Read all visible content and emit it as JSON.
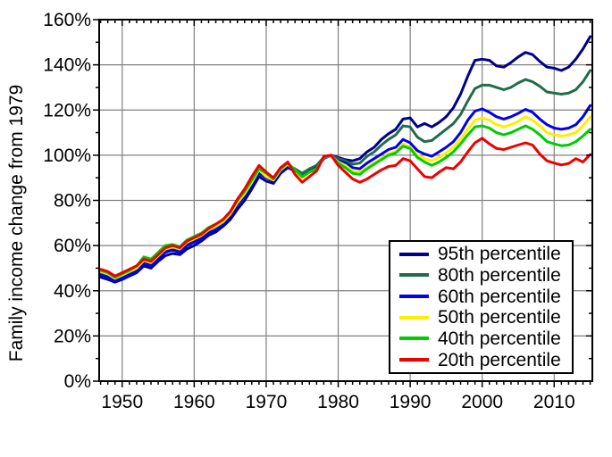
{
  "figure": {
    "background": "#ffffff",
    "frame_color": "#000000",
    "grid_color": "#808080"
  },
  "chart_data": {
    "type": "line",
    "title": "",
    "xlabel": "",
    "ylabel": "Family income change from 1979",
    "x_range": [
      1946.8,
      2015.3
    ],
    "ylim": [
      0,
      160
    ],
    "grid": true,
    "legend_position": "lower right",
    "x_major_ticks": [
      1950,
      1960,
      1970,
      1980,
      1990,
      2000,
      2010
    ],
    "y_major_ticks": [
      0,
      20,
      40,
      60,
      80,
      100,
      120,
      140,
      160
    ],
    "y_minor_step": 10,
    "x_minor_step": 1,
    "y_tick_suffix": "%",
    "years": [
      1947,
      1948,
      1949,
      1950,
      1951,
      1952,
      1953,
      1954,
      1955,
      1956,
      1957,
      1958,
      1959,
      1960,
      1961,
      1962,
      1963,
      1964,
      1965,
      1966,
      1967,
      1968,
      1969,
      1970,
      1971,
      1972,
      1973,
      1974,
      1975,
      1976,
      1977,
      1978,
      1979,
      1980,
      1981,
      1982,
      1983,
      1984,
      1985,
      1986,
      1987,
      1988,
      1989,
      1990,
      1991,
      1992,
      1993,
      1994,
      1995,
      1996,
      1997,
      1998,
      1999,
      2000,
      2001,
      2002,
      2003,
      2004,
      2005,
      2006,
      2007,
      2008,
      2009,
      2010,
      2011,
      2012,
      2013,
      2014,
      2015
    ],
    "series": [
      {
        "name": "95th percentile",
        "color": "#00008B",
        "values": [
          46.0,
          45.0,
          43.8,
          45.0,
          46.5,
          48.0,
          51.0,
          50.0,
          53.0,
          55.5,
          56.5,
          56.0,
          58.5,
          60.0,
          62.0,
          64.5,
          66.0,
          68.5,
          71.5,
          76.0,
          80.0,
          85.0,
          90.5,
          88.5,
          87.5,
          92.0,
          94.5,
          93.0,
          91.5,
          93.5,
          95.5,
          99.0,
          100,
          99.0,
          98.0,
          97.5,
          98.5,
          101.5,
          103.5,
          107.0,
          109.5,
          111.5,
          116.0,
          116.5,
          112.5,
          114.0,
          112.5,
          114.5,
          117.0,
          121.0,
          127.0,
          135.0,
          142.0,
          142.5,
          142.0,
          139.5,
          139.0,
          141.0,
          143.5,
          145.5,
          144.5,
          141.5,
          139.0,
          138.5,
          137.5,
          139.0,
          142.5,
          147.0,
          152.5
        ]
      },
      {
        "name": "80th percentile",
        "color": "#226B4C",
        "values": [
          47.5,
          46.5,
          44.8,
          46.0,
          47.5,
          49.0,
          52.5,
          51.5,
          54.5,
          57.5,
          58.5,
          57.5,
          60.5,
          62.0,
          63.5,
          66.0,
          67.5,
          70.0,
          73.5,
          78.5,
          82.5,
          87.5,
          92.5,
          90.5,
          89.5,
          93.5,
          95.5,
          94.0,
          92.0,
          94.0,
          95.5,
          99.0,
          100,
          98.5,
          97.5,
          96.0,
          96.5,
          99.5,
          101.5,
          104.5,
          107.0,
          109.0,
          113.0,
          112.5,
          108.0,
          106.0,
          106.5,
          109.0,
          111.5,
          114.0,
          118.0,
          124.0,
          129.5,
          131.0,
          131.0,
          130.0,
          129.0,
          130.0,
          132.0,
          133.5,
          132.5,
          130.5,
          128.0,
          127.5,
          127.0,
          127.5,
          129.0,
          132.5,
          137.5
        ]
      },
      {
        "name": "60th percentile",
        "color": "#0000EE",
        "values": [
          47.0,
          46.0,
          44.3,
          45.5,
          47.0,
          48.5,
          52.0,
          51.0,
          54.0,
          57.0,
          58.0,
          57.0,
          60.0,
          61.5,
          63.0,
          65.5,
          67.0,
          69.5,
          73.0,
          78.0,
          82.0,
          87.0,
          92.0,
          90.0,
          88.5,
          92.5,
          95.0,
          92.5,
          90.5,
          92.5,
          94.5,
          98.5,
          100,
          97.5,
          96.5,
          94.5,
          94.0,
          96.5,
          98.5,
          100.5,
          102.5,
          103.5,
          107.0,
          105.5,
          102.0,
          100.5,
          99.5,
          101.5,
          103.5,
          106.0,
          110.0,
          115.5,
          119.5,
          120.5,
          119.0,
          117.0,
          116.0,
          117.0,
          118.5,
          120.3,
          119.0,
          116.0,
          113.5,
          112.0,
          111.5,
          112.0,
          113.5,
          117.0,
          122.0
        ]
      },
      {
        "name": "50th percentile",
        "color": "#FFEE00",
        "values": [
          48.5,
          47.5,
          45.5,
          47.0,
          48.5,
          50.0,
          53.5,
          52.5,
          55.5,
          58.5,
          59.5,
          58.5,
          61.5,
          63.0,
          64.5,
          67.0,
          68.5,
          70.5,
          74.0,
          79.0,
          83.0,
          88.0,
          93.5,
          90.5,
          89.0,
          93.5,
          96.0,
          93.0,
          90.0,
          92.5,
          94.0,
          99.0,
          100,
          97.0,
          95.5,
          93.0,
          92.5,
          94.5,
          96.5,
          98.5,
          100.5,
          101.5,
          105.0,
          103.5,
          100.0,
          98.5,
          97.5,
          99.0,
          101.0,
          103.5,
          107.0,
          111.5,
          115.5,
          116.5,
          115.5,
          113.5,
          112.5,
          113.5,
          115.0,
          117.0,
          115.5,
          113.0,
          110.0,
          109.0,
          108.5,
          109.0,
          110.0,
          113.0,
          117.0
        ]
      },
      {
        "name": "40th percentile",
        "color": "#00CC00",
        "values": [
          49.0,
          48.0,
          46.0,
          47.5,
          49.0,
          51.0,
          55.0,
          54.0,
          57.0,
          60.0,
          60.5,
          59.5,
          62.5,
          64.0,
          65.5,
          68.0,
          69.5,
          71.5,
          75.0,
          80.0,
          84.0,
          89.0,
          94.0,
          92.0,
          89.5,
          94.0,
          96.5,
          93.5,
          90.5,
          92.5,
          94.0,
          99.0,
          100,
          96.5,
          94.5,
          92.0,
          91.5,
          94.0,
          96.0,
          98.0,
          100.0,
          101.0,
          104.0,
          103.0,
          99.0,
          97.0,
          95.5,
          97.0,
          99.0,
          101.5,
          105.0,
          109.0,
          112.5,
          113.0,
          112.0,
          110.0,
          109.0,
          110.0,
          111.5,
          113.0,
          111.5,
          109.0,
          106.0,
          105.0,
          104.2,
          104.5,
          106.0,
          108.5,
          111.5
        ]
      },
      {
        "name": "20th percentile",
        "color": "#EE0000",
        "values": [
          49.5,
          48.5,
          46.5,
          48.0,
          49.5,
          51.0,
          54.0,
          53.0,
          56.0,
          59.0,
          60.0,
          59.0,
          62.0,
          63.5,
          65.0,
          67.5,
          69.5,
          71.5,
          75.0,
          80.5,
          85.0,
          90.5,
          95.5,
          92.5,
          90.0,
          94.5,
          97.0,
          91.5,
          88.0,
          90.5,
          93.0,
          99.5,
          100,
          95.5,
          92.5,
          89.5,
          88.0,
          89.5,
          91.5,
          93.5,
          95.0,
          95.5,
          98.5,
          97.5,
          94.0,
          90.5,
          90.0,
          92.5,
          94.5,
          94.0,
          97.0,
          101.5,
          105.5,
          107.5,
          105.0,
          103.0,
          102.5,
          103.5,
          104.5,
          105.5,
          104.5,
          100.5,
          97.5,
          96.5,
          95.7,
          96.3,
          98.5,
          97.0,
          100.3
        ]
      }
    ]
  }
}
